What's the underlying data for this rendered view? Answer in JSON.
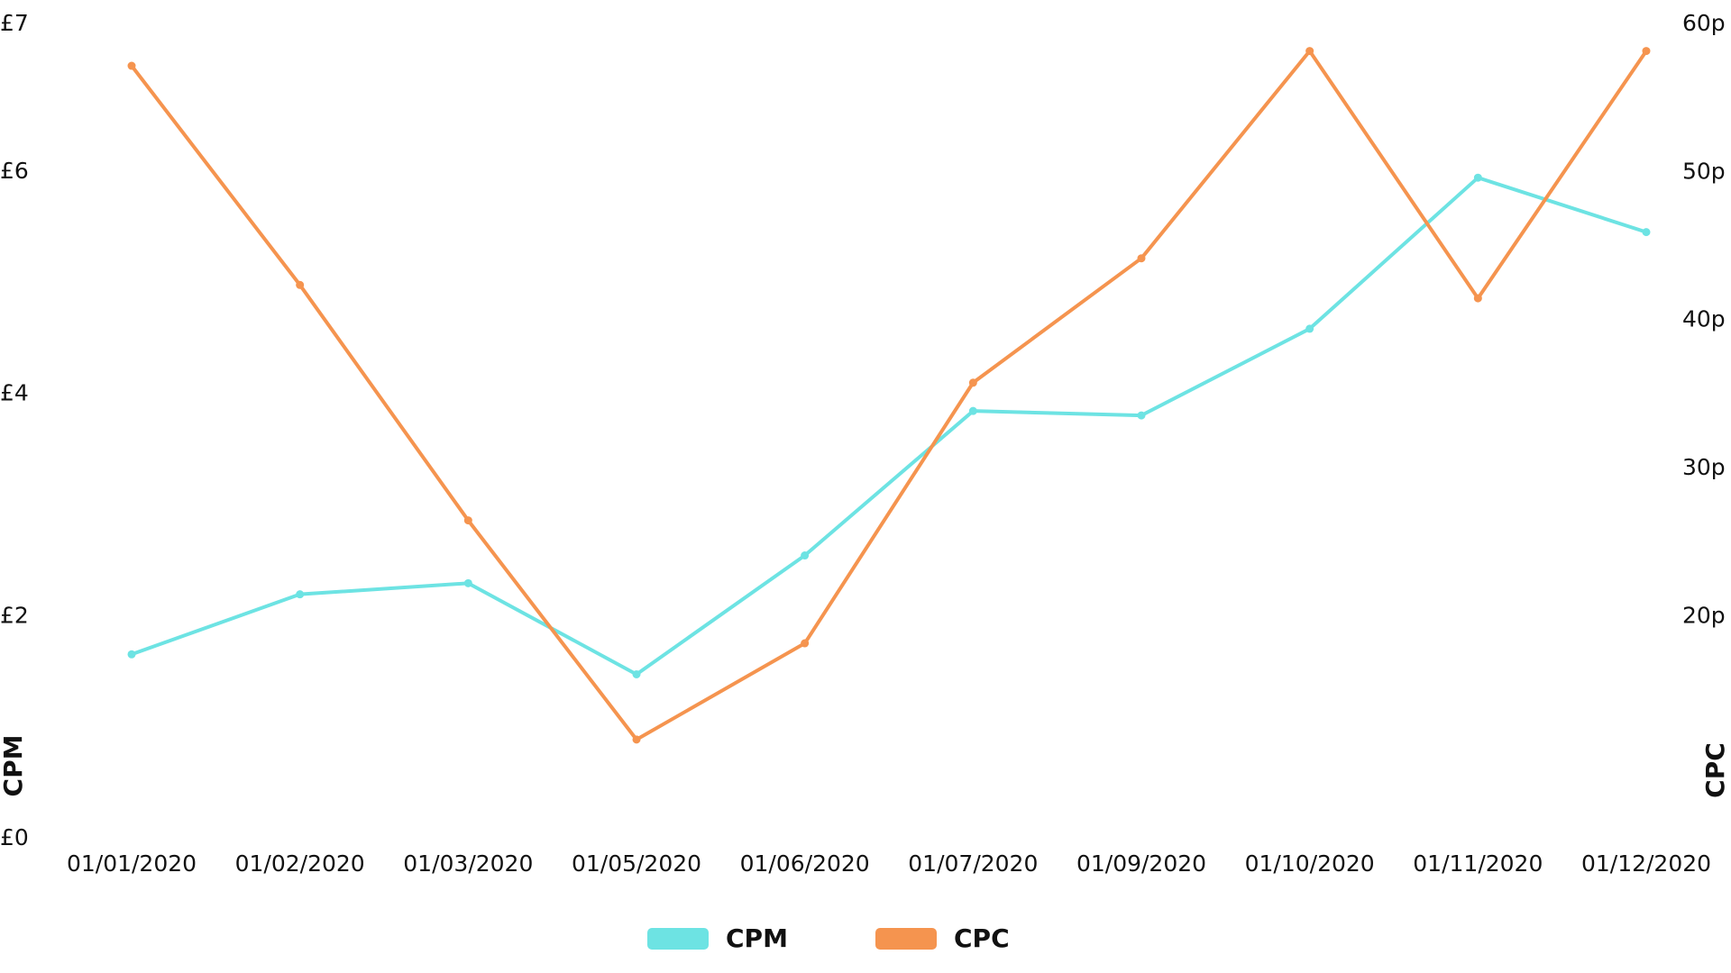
{
  "chart_data": {
    "type": "line",
    "x": [
      "01/01/2020",
      "01/02/2020",
      "01/03/2020",
      "01/05/2020",
      "01/06/2020",
      "01/07/2020",
      "01/09/2020",
      "01/10/2020",
      "01/11/2020",
      "01/12/2020"
    ],
    "y_label": "CPM",
    "y2_label": "CPC",
    "ylim": [
      0,
      7.33
    ],
    "yticks": [
      {
        "value": 0,
        "label": "£0"
      },
      {
        "value": 2,
        "label": "£2"
      },
      {
        "value": 4,
        "label": "£4"
      },
      {
        "value": 6,
        "label": "£6"
      },
      {
        "value": 7.33,
        "label": "£7"
      }
    ],
    "y2lim": [
      5,
      60
    ],
    "y2ticks": [
      {
        "value": 20,
        "label": "20p"
      },
      {
        "value": 30,
        "label": "30p"
      },
      {
        "value": 40,
        "label": "40p"
      },
      {
        "value": 50,
        "label": "50p"
      },
      {
        "value": 60,
        "label": "60p"
      }
    ],
    "grid": false,
    "series": [
      {
        "name": "CPM",
        "color": "#6de3e3",
        "values": [
          1.66,
          2.2,
          2.3,
          1.48,
          2.55,
          3.85,
          3.81,
          4.59,
          5.95,
          5.46
        ]
      },
      {
        "name": "CPC",
        "color": "#f5944f",
        "axis": "y2",
        "values": [
          57.2,
          42.4,
          26.5,
          11.7,
          18.2,
          35.8,
          44.2,
          58.2,
          41.5,
          58.2
        ]
      }
    ]
  }
}
